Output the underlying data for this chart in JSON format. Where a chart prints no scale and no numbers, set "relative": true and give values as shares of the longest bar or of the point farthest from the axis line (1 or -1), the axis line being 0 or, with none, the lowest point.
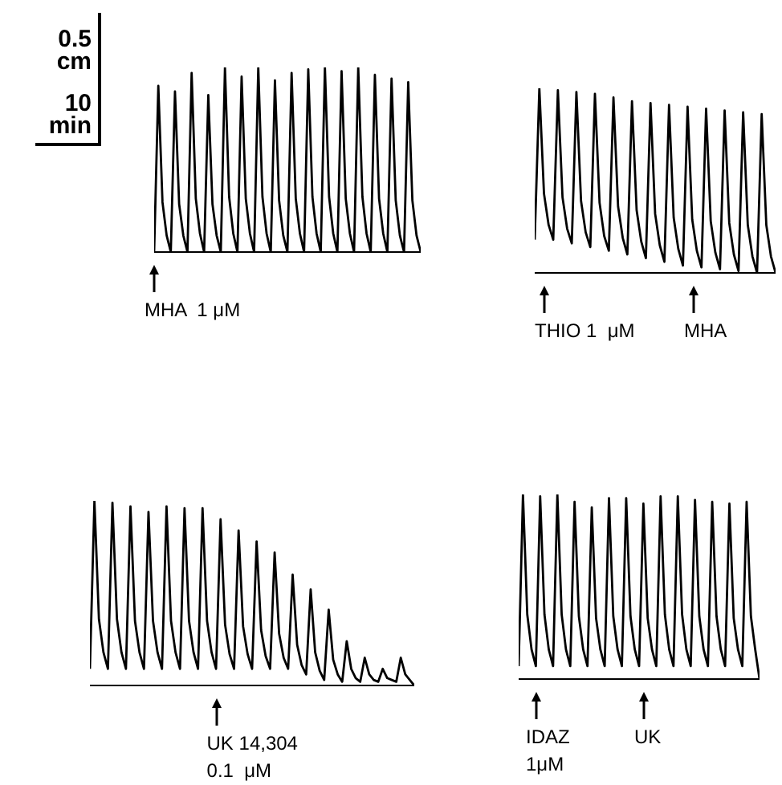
{
  "chart_data": [
    {
      "type": "line",
      "relative": true,
      "marker": "none",
      "annotations": [
        "0.5\ncm",
        "10\nmin",
        "MHA  1 μM"
      ],
      "categories": [
        null,
        null,
        null,
        null,
        null,
        null,
        null,
        null,
        null,
        null,
        null,
        null,
        null,
        null,
        null,
        null,
        null,
        null,
        null,
        null,
        null,
        null,
        null,
        null,
        null,
        null,
        null,
        null,
        null,
        null,
        null,
        null,
        null,
        null,
        null,
        null,
        null,
        null,
        null,
        null,
        null,
        null,
        null,
        null,
        null,
        null,
        null,
        null,
        null,
        null,
        null,
        null,
        null,
        null,
        null,
        null,
        null,
        null,
        null,
        null,
        null,
        null,
        null,
        null,
        null
      ],
      "series": [
        {
          "color": "#000000",
          "values": [
            0,
            0.9,
            0.27,
            0.09,
            0,
            0.87,
            0.26,
            0.09,
            0,
            0.97,
            0.29,
            0.1,
            0,
            0.85,
            0.26,
            0.09,
            0,
            1,
            0.3,
            0.1,
            0,
            0.95,
            0.29,
            0.1,
            0,
            1,
            0.3,
            0.1,
            0,
            0.93,
            0.28,
            0.09,
            0,
            0.97,
            0.29,
            0.1,
            0,
            0.99,
            0.3,
            0.1,
            0,
            1,
            0.3,
            0.1,
            0,
            0.98,
            0.29,
            0.1,
            0,
            1,
            0.3,
            0.1,
            0,
            0.96,
            0.29,
            0.1,
            0,
            0.94,
            0.28,
            0.09,
            0,
            0.92,
            0.28,
            0.09,
            0
          ]
        }
      ]
    },
    {
      "type": "line",
      "relative": true,
      "marker": "none",
      "annotations": [
        "THIO 1  μM",
        "MHA"
      ],
      "categories": [
        null,
        null,
        null,
        null,
        null,
        null,
        null,
        null,
        null,
        null,
        null,
        null,
        null,
        null,
        null,
        null,
        null,
        null,
        null,
        null,
        null,
        null,
        null,
        null,
        null,
        null,
        null,
        null,
        null,
        null,
        null,
        null,
        null,
        null,
        null,
        null,
        null,
        null,
        null,
        null,
        null,
        null,
        null,
        null,
        null,
        null,
        null,
        null,
        null,
        null,
        null,
        null,
        null
      ],
      "series": [
        {
          "color": "#000000",
          "values": [
            0.18,
            1,
            0.43,
            0.26,
            0.18,
            0.99,
            0.41,
            0.24,
            0.16,
            0.98,
            0.39,
            0.22,
            0.14,
            0.97,
            0.38,
            0.2,
            0.12,
            0.95,
            0.36,
            0.19,
            0.1,
            0.93,
            0.34,
            0.17,
            0.08,
            0.92,
            0.32,
            0.15,
            0.06,
            0.91,
            0.3,
            0.13,
            0.04,
            0.9,
            0.29,
            0.12,
            0.03,
            0.89,
            0.28,
            0.11,
            0.02,
            0.88,
            0.27,
            0.1,
            0.01,
            0.87,
            0.26,
            0.09,
            0,
            0.86,
            0.26,
            0.09,
            0
          ]
        }
      ]
    },
    {
      "type": "line",
      "relative": true,
      "marker": "none",
      "annotations": [
        "UK 14,304\n0.1  μM"
      ],
      "categories": [
        null,
        null,
        null,
        null,
        null,
        null,
        null,
        null,
        null,
        null,
        null,
        null,
        null,
        null,
        null,
        null,
        null,
        null,
        null,
        null,
        null,
        null,
        null,
        null,
        null,
        null,
        null,
        null,
        null,
        null,
        null,
        null,
        null,
        null,
        null,
        null,
        null,
        null,
        null,
        null,
        null,
        null,
        null,
        null,
        null,
        null,
        null,
        null,
        null,
        null,
        null,
        null,
        null,
        null,
        null,
        null,
        null,
        null,
        null,
        null,
        null,
        null,
        null,
        null,
        null,
        null,
        null,
        null,
        null,
        null,
        null,
        null,
        null
      ],
      "series": [
        {
          "color": "#000000",
          "values": [
            0.09,
            1,
            0.36,
            0.18,
            0.09,
            0.99,
            0.36,
            0.18,
            0.09,
            0.97,
            0.35,
            0.18,
            0.09,
            0.94,
            0.35,
            0.18,
            0.09,
            0.97,
            0.35,
            0.18,
            0.09,
            0.96,
            0.35,
            0.18,
            0.09,
            0.96,
            0.35,
            0.18,
            0.09,
            0.9,
            0.33,
            0.17,
            0.09,
            0.84,
            0.32,
            0.17,
            0.09,
            0.78,
            0.3,
            0.16,
            0.09,
            0.72,
            0.28,
            0.15,
            0.09,
            0.6,
            0.22,
            0.11,
            0.06,
            0.52,
            0.18,
            0.08,
            0.03,
            0.41,
            0.14,
            0.06,
            0.02,
            0.24,
            0.09,
            0.04,
            0.02,
            0.15,
            0.06,
            0.03,
            0.02,
            0.09,
            0.04,
            0.03,
            0.02,
            0.15,
            0.06,
            0.03,
            0
          ]
        }
      ]
    },
    {
      "type": "line",
      "relative": true,
      "marker": "none",
      "annotations": [
        "IDAZ\n1μM",
        "UK"
      ],
      "categories": [
        null,
        null,
        null,
        null,
        null,
        null,
        null,
        null,
        null,
        null,
        null,
        null,
        null,
        null,
        null,
        null,
        null,
        null,
        null,
        null,
        null,
        null,
        null,
        null,
        null,
        null,
        null,
        null,
        null,
        null,
        null,
        null,
        null,
        null,
        null,
        null,
        null,
        null,
        null,
        null,
        null,
        null,
        null,
        null,
        null,
        null,
        null,
        null,
        null,
        null,
        null,
        null,
        null,
        null,
        null,
        null,
        null
      ],
      "series": [
        {
          "color": "#000000",
          "values": [
            0.07,
            1,
            0.35,
            0.16,
            0.07,
            0.99,
            0.35,
            0.16,
            0.07,
            1,
            0.35,
            0.16,
            0.07,
            0.96,
            0.34,
            0.16,
            0.07,
            0.93,
            0.33,
            0.16,
            0.07,
            0.98,
            0.34,
            0.16,
            0.07,
            0.98,
            0.34,
            0.16,
            0.07,
            0.95,
            0.33,
            0.16,
            0.07,
            0.99,
            0.35,
            0.16,
            0.07,
            0.99,
            0.35,
            0.16,
            0.07,
            0.97,
            0.34,
            0.16,
            0.07,
            0.96,
            0.34,
            0.16,
            0.07,
            0.95,
            0.33,
            0.16,
            0.07,
            0.96,
            0.34,
            0.16,
            0
          ]
        }
      ]
    }
  ]
}
